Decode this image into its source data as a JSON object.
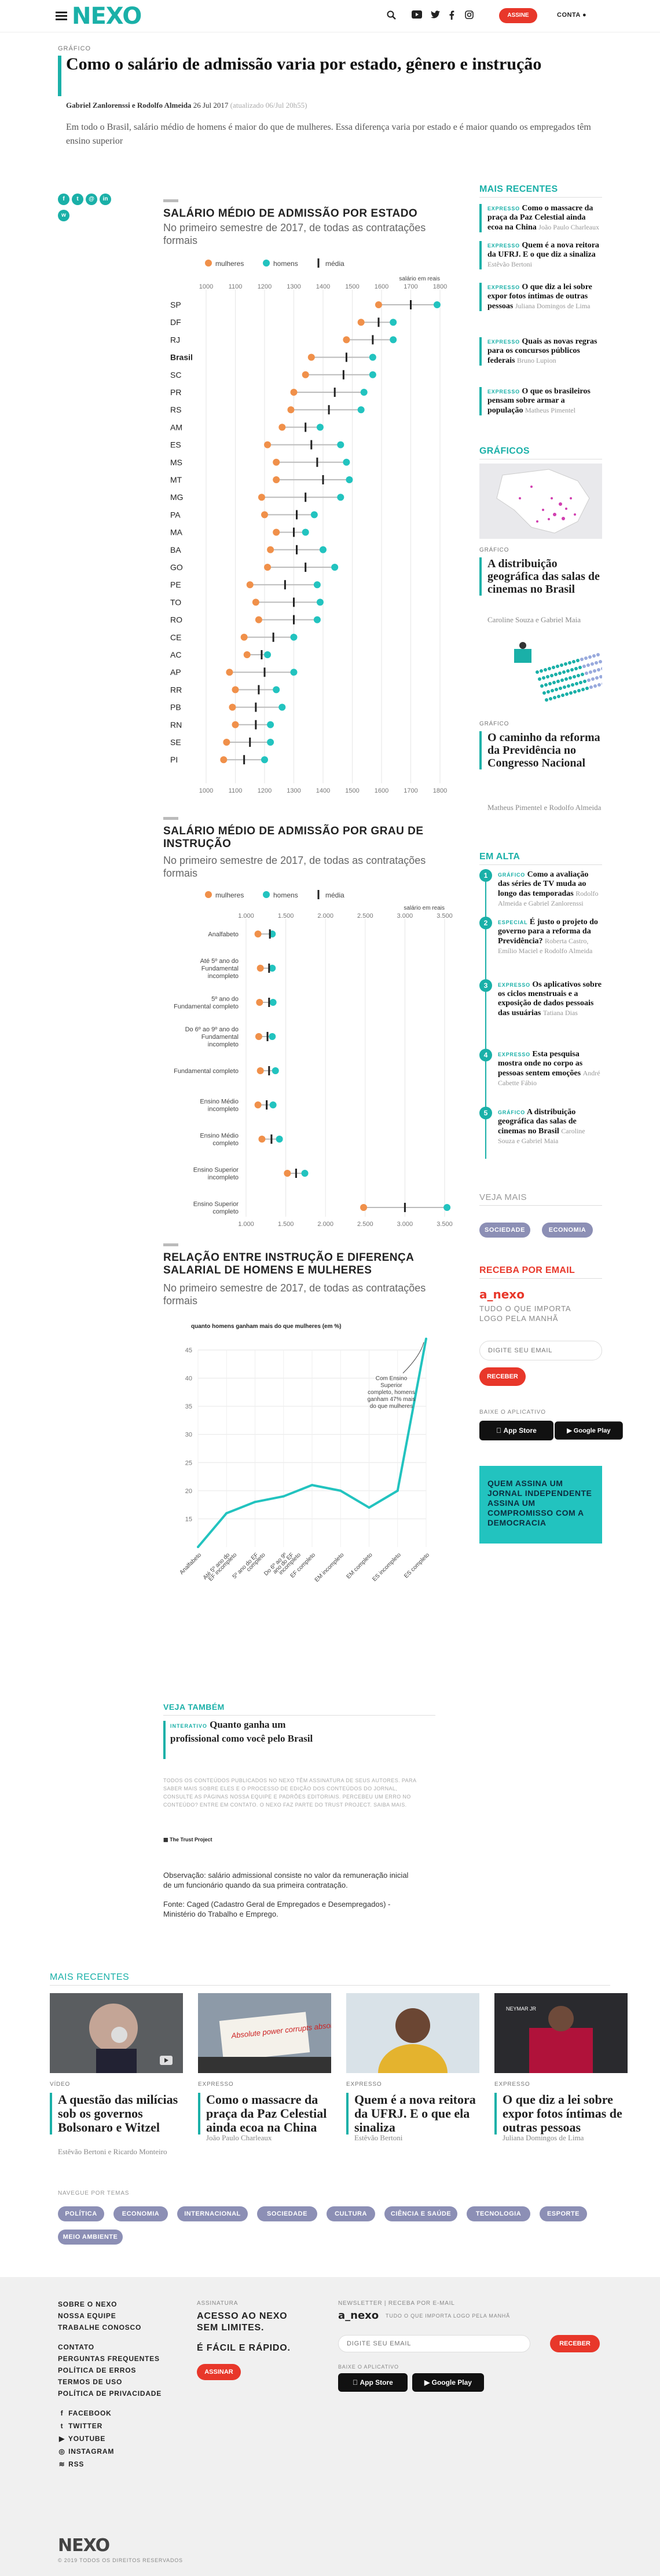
{
  "header": {
    "logo": "NEXO",
    "subscribe_label": "ASSINE",
    "account_label": "CONTA"
  },
  "article": {
    "kicker": "GRÁFICO",
    "title": "Como o salário de admissão varia por estado, gênero e instrução",
    "authors": "Gabriel Zanlorenssi e Rodolfo Almeida",
    "date": "26 Jul 2017",
    "updated": "(atualizado 06/Jul 20h55)",
    "lead": "Em todo o Brasil, salário médio de homens é maior do que de mulheres. Essa diferença varia por estado e é maior quando os empregados têm ensino superior"
  },
  "chart_data": [
    {
      "type": "scatter",
      "title": "SALÁRIO MÉDIO DE ADMISSÃO POR ESTADO",
      "subtitle": "No primeiro semestre de 2017, de todas as contratações formais",
      "legend": [
        "mulheres",
        "homens",
        "média"
      ],
      "axis_note": "salário em reais",
      "xlim": [
        1000,
        1800
      ],
      "ticks": [
        1000,
        1100,
        1200,
        1300,
        1400,
        1500,
        1600,
        1700,
        1800
      ],
      "colors": {
        "mulheres": "#f0904a",
        "homens": "#22c3bf",
        "media": "#222222"
      },
      "categories": [
        "SP",
        "DF",
        "RJ",
        "Brasil",
        "SC",
        "PR",
        "RS",
        "AM",
        "ES",
        "MS",
        "MT",
        "MG",
        "PA",
        "MA",
        "BA",
        "GO",
        "PE",
        "TO",
        "RO",
        "CE",
        "AC",
        "AP",
        "RR",
        "PB",
        "RN",
        "SE",
        "PI"
      ],
      "series": [
        {
          "name": "mulheres",
          "values": [
            1590,
            1530,
            1480,
            1360,
            1340,
            1300,
            1290,
            1260,
            1210,
            1240,
            1240,
            1190,
            1200,
            1240,
            1220,
            1210,
            1150,
            1170,
            1180,
            1130,
            1140,
            1080,
            1100,
            1090,
            1100,
            1070,
            1060
          ]
        },
        {
          "name": "homens",
          "values": [
            1790,
            1640,
            1640,
            1570,
            1570,
            1540,
            1530,
            1390,
            1460,
            1480,
            1490,
            1460,
            1370,
            1340,
            1400,
            1440,
            1380,
            1390,
            1380,
            1300,
            1210,
            1300,
            1240,
            1260,
            1220,
            1220,
            1200
          ]
        },
        {
          "name": "média",
          "values": [
            1700,
            1590,
            1570,
            1480,
            1470,
            1440,
            1420,
            1340,
            1360,
            1380,
            1400,
            1340,
            1310,
            1300,
            1310,
            1340,
            1270,
            1300,
            1300,
            1230,
            1190,
            1200,
            1180,
            1170,
            1170,
            1150,
            1130
          ]
        }
      ]
    },
    {
      "type": "scatter",
      "title": "SALÁRIO MÉDIO DE ADMISSÃO POR GRAU DE INSTRUÇÃO",
      "subtitle": "No primeiro semestre de 2017, de todas as contratações formais",
      "legend": [
        "mulheres",
        "homens",
        "média"
      ],
      "axis_note": "salário em reais",
      "xlim": [
        1000,
        3500
      ],
      "ticks": [
        1000,
        1500,
        2000,
        2500,
        3000,
        3500
      ],
      "categories": [
        "Analfabeto",
        "Até 5º ano do Fundamental incompleto",
        "5º ano do Fundamental completo",
        "Do 6º ao 9º ano do Fundamental incompleto",
        "Fundamental completo",
        "Ensino Médio incompleto",
        "Ensino Médio completo",
        "Ensino Superior incompleto",
        "Ensino Superior completo"
      ],
      "series": [
        {
          "name": "mulheres",
          "values": [
            1150,
            1180,
            1170,
            1160,
            1180,
            1150,
            1200,
            1520,
            2480
          ]
        },
        {
          "name": "homens",
          "values": [
            1330,
            1330,
            1340,
            1330,
            1370,
            1340,
            1420,
            1740,
            3530
          ]
        },
        {
          "name": "média",
          "values": [
            1300,
            1290,
            1290,
            1270,
            1290,
            1260,
            1320,
            1630,
            3000
          ]
        }
      ]
    },
    {
      "type": "line",
      "title": "RELAÇÃO ENTRE INSTRUÇÃO E DIFERENÇA SALARIAL DE HOMENS E MULHERES",
      "subtitle": "No primeiro semestre de 2017, de todas as contratações formais",
      "ylabel": "quanto homens ganham mais do que mulheres (em %)",
      "ylim": [
        10,
        45
      ],
      "yticks": [
        15,
        20,
        25,
        30,
        35,
        40,
        45
      ],
      "annotation": "Com Ensino Superior completo, homens ganham 47% mais do que mulheres",
      "categories": [
        "Analfabeto",
        "Até 5º ano do EF incompleto",
        "5º ano do EF completo",
        "Do 6º ao 9º ano do EF incompleto",
        "EF completo",
        "EM incompleto",
        "EM completo",
        "ES incompleto",
        "ES completo"
      ],
      "series": [
        {
          "name": "",
          "values": [
            10,
            16,
            18,
            19,
            21,
            20,
            17,
            20,
            47
          ]
        }
      ]
    }
  ],
  "notes": {
    "obs": "Observação: salário admissional consiste no valor da remuneração inicial de um funcionário quando da sua primeira contratação.",
    "source": "Fonte: Caged (Cadastro Geral de Empregados e Desempregados) - Ministério do Trabalho e Emprego."
  },
  "see_also": {
    "heading": "VEJA TAMBÉM",
    "tag": "INTERATIVO",
    "title": "Quanto ganha um profissional como você pelo Brasil"
  },
  "legal": {
    "text": "TODOS OS CONTEÚDOS PUBLICADOS NO NEXO TÊM ASSINATURA DE SEUS AUTORES. PARA SABER MAIS SOBRE ELES E O PROCESSO DE EDIÇÃO DOS CONTEÚDOS DO JORNAL, CONSULTE AS PÁGINAS NOSSA EQUIPE E PADRÕES EDITORIAIS. PERCEBEU UM ERRO NO CONTEÚDO? ENTRE EM CONTATO. O NEXO FAZ PARTE DO TRUST PROJECT. SAIBA MAIS.",
    "trust": "The Trust Project"
  },
  "sidebar": {
    "recent_heading": "MAIS RECENTES",
    "recent": [
      {
        "tag": "EXPRESSO",
        "title": "Como o massacre da praça da Paz Celestial ainda ecoa na China",
        "author": "João Paulo Charleaux"
      },
      {
        "tag": "EXPRESSO",
        "title": "Quem é a nova reitora da UFRJ. E o que diz a sinaliza",
        "author": "Estêvão Bertoni"
      },
      {
        "tag": "EXPRESSO",
        "title": "O que diz a lei sobre expor fotos íntimas de outras pessoas",
        "author": "Juliana Domingos de Lima"
      },
      {
        "tag": "EXPRESSO",
        "title": "Quais as novas regras para os concursos públicos federais",
        "author": "Bruno Lupion"
      },
      {
        "tag": "EXPRESSO",
        "title": "O que os brasileiros pensam sobre armar a população",
        "author": "Matheus Pimentel"
      }
    ],
    "graphics_heading": "GRÁFICOS",
    "graphics": [
      {
        "cat": "GRÁFICO",
        "title": "A distribuição geográfica das salas de cinemas no Brasil",
        "author": "Caroline Souza e Gabriel Maia"
      },
      {
        "cat": "GRÁFICO",
        "title": "O caminho da reforma da Previdência no Congresso Nacional",
        "author": "Matheus Pimentel e Rodolfo Almeida"
      }
    ],
    "trending_heading": "EM ALTA",
    "trending": [
      {
        "n": "1",
        "tag": "GRÁFICO",
        "title": "Como a avaliação das séries de TV muda ao longo das temporadas",
        "author": "Rodolfo Almeida e Gabriel Zanlorenssi"
      },
      {
        "n": "2",
        "tag": "ESPECIAL",
        "title": "É justo o projeto do governo para a reforma da Previdência?",
        "author": "Roberta Castro, Emílio Maciel e Rodolfo Almeida"
      },
      {
        "n": "3",
        "tag": "EXPRESSO",
        "title": "Os aplicativos sobre os ciclos menstruais e a exposição de dados pessoais das usuárias",
        "author": "Tatiana Dias"
      },
      {
        "n": "4",
        "tag": "EXPRESSO",
        "title": "Esta pesquisa mostra onde no corpo as pessoas sentem emoções",
        "author": "André Cabette Fábio"
      },
      {
        "n": "5",
        "tag": "GRÁFICO",
        "title": "A distribuição geográfica das salas de cinemas no Brasil",
        "author": "Caroline Souza e Gabriel Maia"
      }
    ],
    "see_also_heading": "VEJA MAIS",
    "see_also_tags": [
      "SOCIEDADE",
      "ECONOMIA"
    ],
    "newsletter_heading": "RECEBA POR EMAIL",
    "newsletter_brand": "a_nexo",
    "newsletter_desc": "TUDO O QUE IMPORTA LOGO PELA MANHÃ",
    "email_placeholder": "DIGITE SEU EMAIL",
    "subscribe_button": "RECEBER",
    "app_label": "BAIXE O APLICATIVO",
    "app_store": "App Store",
    "google_play": "Google Play",
    "promo": "QUEM ASSINA UM JORNAL INDEPENDENTE ASSINA UM COMPROMISSO COM A DEMOCRACIA"
  },
  "more_recent": {
    "heading": "MAIS RECENTES",
    "items": [
      {
        "cat": "VÍDEO",
        "title": "A questão das milícias sob os governos Bolsonaro e Witzel",
        "author": "Estêvão Bertoni e Ricardo Monteiro"
      },
      {
        "cat": "EXPRESSO",
        "title": "Como o massacre da praça da Paz Celestial ainda ecoa na China",
        "author": "João Paulo Charleaux"
      },
      {
        "cat": "EXPRESSO",
        "title": "Quem é a nova reitora da UFRJ. E o que ela sinaliza",
        "author": "Estêvão Bertoni"
      },
      {
        "cat": "EXPRESSO",
        "title": "O que diz a lei sobre expor fotos íntimas de outras pessoas",
        "author": "Juliana Domingos de Lima"
      }
    ],
    "protest_sign": "Absolute power corrupts absolutely",
    "topics_label": "NAVEGUE POR TEMAS",
    "topics": [
      "POLÍTICA",
      "ECONOMIA",
      "INTERNACIONAL",
      "SOCIEDADE",
      "CULTURA",
      "CIÊNCIA E SAÚDE",
      "TECNOLOGIA",
      "ESPORTE",
      "MEIO AMBIENTE"
    ]
  },
  "footer": {
    "links1": [
      "SOBRE O NEXO",
      "NOSSA EQUIPE",
      "TRABALHE CONOSCO"
    ],
    "links2": [
      "CONTATO",
      "PERGUNTAS FREQUENTES",
      "POLÍTICA DE ERROS",
      "TERMOS DE USO",
      "POLÍTICA DE PRIVACIDADE"
    ],
    "social": [
      "FACEBOOK",
      "TWITTER",
      "YOUTUBE",
      "INSTAGRAM",
      "RSS"
    ],
    "sub_label": "ASSINATURA",
    "sub_line1": "ACESSO AO NEXO SEM LIMITES.",
    "sub_line2": "É FÁCIL E RÁPIDO.",
    "sub_button": "ASSINAR",
    "nl_label": "NEWSLETTER | RECEBA POR E-MAIL",
    "nl_brand": "a_nexo",
    "nl_desc": "TUDO O QUE IMPORTA LOGO PELA MANHÃ",
    "nl_placeholder": "DIGITE SEU EMAIL",
    "nl_button": "RECEBER",
    "app_label": "BAIXE O APLICATIVO",
    "logo": "NEXO",
    "copyright": "© 2019 TODOS OS DIREITOS RESERVADOS"
  }
}
